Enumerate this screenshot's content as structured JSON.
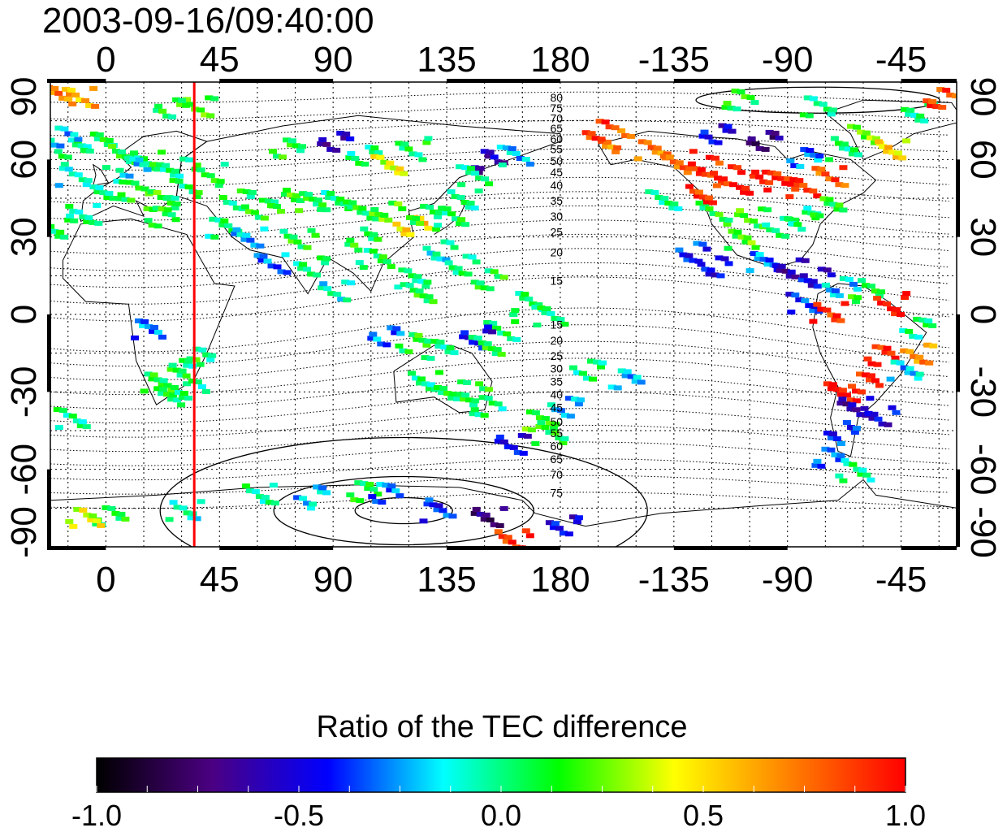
{
  "header": {
    "timestamp": "2003-09-16/09:40:00"
  },
  "map": {
    "projection": "equirectangular",
    "lon_range": [
      -22,
      337
    ],
    "lat_range": [
      -90,
      90
    ],
    "grid_step_lon": 15,
    "grid_step_lat": 15,
    "grid": true,
    "x_ticks": [
      {
        "lon": 0,
        "label": "0"
      },
      {
        "lon": 45,
        "label": "45"
      },
      {
        "lon": 90,
        "label": "90"
      },
      {
        "lon": 135,
        "label": "135"
      },
      {
        "lon": 180,
        "label": "180"
      },
      {
        "lon": 225,
        "label": "-135"
      },
      {
        "lon": 270,
        "label": "-90"
      },
      {
        "lon": 315,
        "label": "-45"
      }
    ],
    "y_ticks": [
      {
        "lat": 90,
        "label": "90"
      },
      {
        "lat": 60,
        "label": "60"
      },
      {
        "lat": 30,
        "label": "30"
      },
      {
        "lat": 0,
        "label": "0"
      },
      {
        "lat": -30,
        "label": "-30"
      },
      {
        "lat": -60,
        "label": "-60"
      },
      {
        "lat": -90,
        "label": "-90"
      }
    ],
    "meridian_marker": {
      "lon": 35,
      "color": "#ff0000"
    },
    "contour_labels_north": [
      "80",
      "75",
      "70",
      "65",
      "60",
      "55",
      "50",
      "45",
      "40",
      "35",
      "30",
      "25",
      "20",
      "15"
    ],
    "contour_labels_south": [
      "15",
      "20",
      "25",
      "30",
      "35",
      "40",
      "45",
      "50",
      "55",
      "60",
      "65",
      "70",
      "75"
    ],
    "contour_label_lon": 176,
    "contour_label_lats_north": [
      84,
      80,
      76,
      72,
      68,
      64,
      59.5,
      55,
      50,
      44,
      38,
      32,
      24,
      13
    ],
    "contour_label_lats_south": [
      -4,
      -10,
      -16,
      -21,
      -26,
      -31,
      -36,
      -41.5,
      -46,
      -51,
      -56,
      -62,
      -69
    ]
  },
  "tec_points": [
    {
      "lon": -20,
      "lat": 85,
      "v": 0.7
    },
    {
      "lon": -12,
      "lat": 85,
      "v": 0.6
    },
    {
      "lon": 35,
      "lat": 82,
      "v": 0.2
    },
    {
      "lon": 25,
      "lat": 80,
      "v": 0.1
    },
    {
      "lon": -15,
      "lat": 65,
      "v": 0.0
    },
    {
      "lon": -5,
      "lat": 68,
      "v": 0.05
    },
    {
      "lon": 5,
      "lat": 62,
      "v": 0.1
    },
    {
      "lon": 15,
      "lat": 60,
      "v": 0.05
    },
    {
      "lon": 25,
      "lat": 58,
      "v": 0.0
    },
    {
      "lon": 0,
      "lat": 50,
      "v": 0.0
    },
    {
      "lon": 10,
      "lat": 48,
      "v": 0.1
    },
    {
      "lon": 20,
      "lat": 45,
      "v": 0.15
    },
    {
      "lon": 30,
      "lat": 50,
      "v": 0.05
    },
    {
      "lon": 40,
      "lat": 55,
      "v": 0.1
    },
    {
      "lon": 50,
      "lat": 45,
      "v": 0.05
    },
    {
      "lon": 60,
      "lat": 42,
      "v": 0.1
    },
    {
      "lon": 70,
      "lat": 45,
      "v": 0.15
    },
    {
      "lon": 80,
      "lat": 44,
      "v": 0.1
    },
    {
      "lon": 90,
      "lat": 45,
      "v": 0.0
    },
    {
      "lon": 100,
      "lat": 42,
      "v": 0.1
    },
    {
      "lon": 110,
      "lat": 40,
      "v": 0.2
    },
    {
      "lon": 120,
      "lat": 35,
      "v": 0.5
    },
    {
      "lon": 125,
      "lat": 40,
      "v": 0.1
    },
    {
      "lon": 135,
      "lat": 38,
      "v": 0.05
    },
    {
      "lon": 140,
      "lat": 45,
      "v": 0.0
    },
    {
      "lon": -10,
      "lat": 40,
      "v": 0.0
    },
    {
      "lon": -20,
      "lat": 35,
      "v": 0.05
    },
    {
      "lon": 20,
      "lat": 38,
      "v": 0.1
    },
    {
      "lon": 10,
      "lat": 58,
      "v": -0.15
    },
    {
      "lon": 45,
      "lat": 35,
      "v": 0.0
    },
    {
      "lon": 55,
      "lat": 30,
      "v": -0.2
    },
    {
      "lon": 75,
      "lat": 30,
      "v": 0.1
    },
    {
      "lon": 80,
      "lat": 20,
      "v": 0.0
    },
    {
      "lon": 100,
      "lat": 30,
      "v": 0.1
    },
    {
      "lon": 105,
      "lat": 22,
      "v": 0.05
    },
    {
      "lon": 120,
      "lat": 15,
      "v": 0.0
    },
    {
      "lon": 122,
      "lat": 10,
      "v": 0.1
    },
    {
      "lon": 130,
      "lat": 25,
      "v": -0.1
    },
    {
      "lon": 140,
      "lat": 20,
      "v": 0.0
    },
    {
      "lon": 150,
      "lat": 15,
      "v": 0.1
    },
    {
      "lon": 165,
      "lat": 5,
      "v": 0.0
    },
    {
      "lon": 175,
      "lat": 0,
      "v": 0.05
    },
    {
      "lon": 155,
      "lat": -5,
      "v": 0.05
    },
    {
      "lon": 145,
      "lat": -8,
      "v": -0.5
    },
    {
      "lon": 110,
      "lat": -8,
      "v": -0.3
    },
    {
      "lon": 120,
      "lat": -10,
      "v": 0.1
    },
    {
      "lon": 130,
      "lat": -12,
      "v": 0.0
    },
    {
      "lon": 150,
      "lat": -12,
      "v": 0.1
    },
    {
      "lon": 125,
      "lat": -25,
      "v": 0.0
    },
    {
      "lon": 135,
      "lat": -28,
      "v": 0.05
    },
    {
      "lon": 145,
      "lat": -30,
      "v": 0.1
    },
    {
      "lon": 150,
      "lat": -35,
      "v": 0.0
    },
    {
      "lon": 170,
      "lat": -40,
      "v": 0.2
    },
    {
      "lon": 175,
      "lat": -45,
      "v": 0.1
    },
    {
      "lon": 160,
      "lat": -50,
      "v": -0.5
    },
    {
      "lon": 180,
      "lat": -35,
      "v": -0.2
    },
    {
      "lon": 190,
      "lat": -20,
      "v": 0.0
    },
    {
      "lon": 205,
      "lat": -25,
      "v": -0.2
    },
    {
      "lon": 15,
      "lat": -5,
      "v": -0.3
    },
    {
      "lon": 20,
      "lat": -25,
      "v": 0.1
    },
    {
      "lon": 25,
      "lat": -30,
      "v": 0.05
    },
    {
      "lon": 30,
      "lat": -20,
      "v": 0.1
    },
    {
      "lon": 32,
      "lat": -28,
      "v": 0.0
    },
    {
      "lon": 35,
      "lat": -15,
      "v": 0.0
    },
    {
      "lon": -15,
      "lat": -40,
      "v": 0.0
    },
    {
      "lon": 30,
      "lat": -75,
      "v": -0.1
    },
    {
      "lon": 60,
      "lat": -68,
      "v": 0.0
    },
    {
      "lon": 80,
      "lat": -70,
      "v": -0.2
    },
    {
      "lon": 100,
      "lat": -68,
      "v": 0.1
    },
    {
      "lon": 110,
      "lat": -68,
      "v": -0.3
    },
    {
      "lon": 130,
      "lat": -75,
      "v": -0.4
    },
    {
      "lon": 150,
      "lat": -78,
      "v": -0.75
    },
    {
      "lon": 160,
      "lat": -86,
      "v": 0.9
    },
    {
      "lon": 180,
      "lat": -80,
      "v": -0.5
    },
    {
      "lon": 0,
      "lat": -78,
      "v": 0.1
    },
    {
      "lon": -10,
      "lat": -78,
      "v": 0.4
    },
    {
      "lon": 215,
      "lat": 65,
      "v": 0.7
    },
    {
      "lon": 225,
      "lat": 60,
      "v": 0.8
    },
    {
      "lon": 235,
      "lat": 58,
      "v": 0.9
    },
    {
      "lon": 245,
      "lat": 55,
      "v": 0.95
    },
    {
      "lon": 255,
      "lat": 52,
      "v": 1.0
    },
    {
      "lon": 265,
      "lat": 52,
      "v": 0.95
    },
    {
      "lon": 275,
      "lat": 50,
      "v": 0.9
    },
    {
      "lon": 285,
      "lat": 55,
      "v": 0.8
    },
    {
      "lon": 240,
      "lat": 70,
      "v": -0.5
    },
    {
      "lon": 260,
      "lat": 68,
      "v": -0.7
    },
    {
      "lon": 275,
      "lat": 62,
      "v": -0.3
    },
    {
      "lon": 290,
      "lat": 65,
      "v": 0.0
    },
    {
      "lon": 300,
      "lat": 70,
      "v": 0.3
    },
    {
      "lon": 310,
      "lat": 65,
      "v": 0.5
    },
    {
      "lon": 320,
      "lat": 80,
      "v": 0.0
    },
    {
      "lon": 330,
      "lat": 84,
      "v": 0.85
    },
    {
      "lon": 250,
      "lat": 84,
      "v": 0.1
    },
    {
      "lon": 280,
      "lat": 82,
      "v": 0.0
    },
    {
      "lon": 240,
      "lat": 40,
      "v": 0.1
    },
    {
      "lon": 255,
      "lat": 38,
      "v": 0.15
    },
    {
      "lon": 265,
      "lat": 35,
      "v": 0.05
    },
    {
      "lon": 275,
      "lat": 38,
      "v": 0.0
    },
    {
      "lon": 285,
      "lat": 42,
      "v": 0.1
    },
    {
      "lon": 250,
      "lat": 30,
      "v": 0.2
    },
    {
      "lon": 260,
      "lat": 22,
      "v": -0.3
    },
    {
      "lon": 270,
      "lat": 18,
      "v": -0.6
    },
    {
      "lon": 280,
      "lat": 15,
      "v": -0.5
    },
    {
      "lon": 290,
      "lat": 12,
      "v": -0.2
    },
    {
      "lon": 300,
      "lat": 10,
      "v": 0.1
    },
    {
      "lon": 275,
      "lat": 5,
      "v": -0.4
    },
    {
      "lon": 285,
      "lat": 2,
      "v": 0.9
    },
    {
      "lon": 310,
      "lat": 5,
      "v": 1.0
    },
    {
      "lon": 320,
      "lat": -5,
      "v": 0.0
    },
    {
      "lon": 305,
      "lat": -15,
      "v": 0.9
    },
    {
      "lon": 300,
      "lat": -25,
      "v": 0.95
    },
    {
      "lon": 290,
      "lat": -30,
      "v": 1.0
    },
    {
      "lon": 295,
      "lat": -35,
      "v": -0.6
    },
    {
      "lon": 305,
      "lat": -38,
      "v": -0.5
    },
    {
      "lon": 290,
      "lat": -45,
      "v": -0.4
    },
    {
      "lon": 285,
      "lat": -55,
      "v": -0.3
    },
    {
      "lon": 295,
      "lat": -60,
      "v": 0.0
    },
    {
      "lon": 315,
      "lat": -20,
      "v": -0.2
    },
    {
      "lon": 320,
      "lat": -15,
      "v": 0.7
    },
    {
      "lon": 230,
      "lat": 25,
      "v": -0.4
    },
    {
      "lon": 240,
      "lat": 20,
      "v": -0.5
    },
    {
      "lon": 150,
      "lat": 60,
      "v": -0.6
    },
    {
      "lon": 160,
      "lat": 62,
      "v": -0.2
    },
    {
      "lon": 145,
      "lat": 55,
      "v": 0.0
    },
    {
      "lon": 120,
      "lat": 65,
      "v": 0.05
    },
    {
      "lon": 100,
      "lat": 62,
      "v": 0.0
    },
    {
      "lon": 90,
      "lat": 68,
      "v": -0.6
    },
    {
      "lon": 70,
      "lat": 66,
      "v": 0.1
    },
    {
      "lon": 110,
      "lat": 58,
      "v": 0.4
    },
    {
      "lon": 220,
      "lat": 45,
      "v": 0.0
    },
    {
      "lon": 235,
      "lat": 48,
      "v": 0.9
    },
    {
      "lon": 200,
      "lat": 68,
      "v": 0.7
    },
    {
      "lon": 195,
      "lat": 72,
      "v": 0.9
    },
    {
      "lon": -18,
      "lat": 70,
      "v": -0.2
    },
    {
      "lon": -15,
      "lat": 55,
      "v": -0.1
    },
    {
      "lon": 65,
      "lat": 20,
      "v": -0.3
    },
    {
      "lon": 90,
      "lat": 10,
      "v": -0.1
    }
  ],
  "colorbar": {
    "title": "Ratio of the TEC difference",
    "min": -1.0,
    "max": 1.0,
    "ticks": [
      "-1.0",
      "-0.5",
      "0.0",
      "0.5",
      "1.0"
    ],
    "tick_values": [
      -1.0,
      -0.5,
      0.0,
      0.5,
      1.0
    ],
    "stops": [
      "#000000",
      "#4b0082",
      "#0000ff",
      "#00ffff",
      "#00ff00",
      "#ffff00",
      "#ff8000",
      "#ff0000"
    ]
  }
}
